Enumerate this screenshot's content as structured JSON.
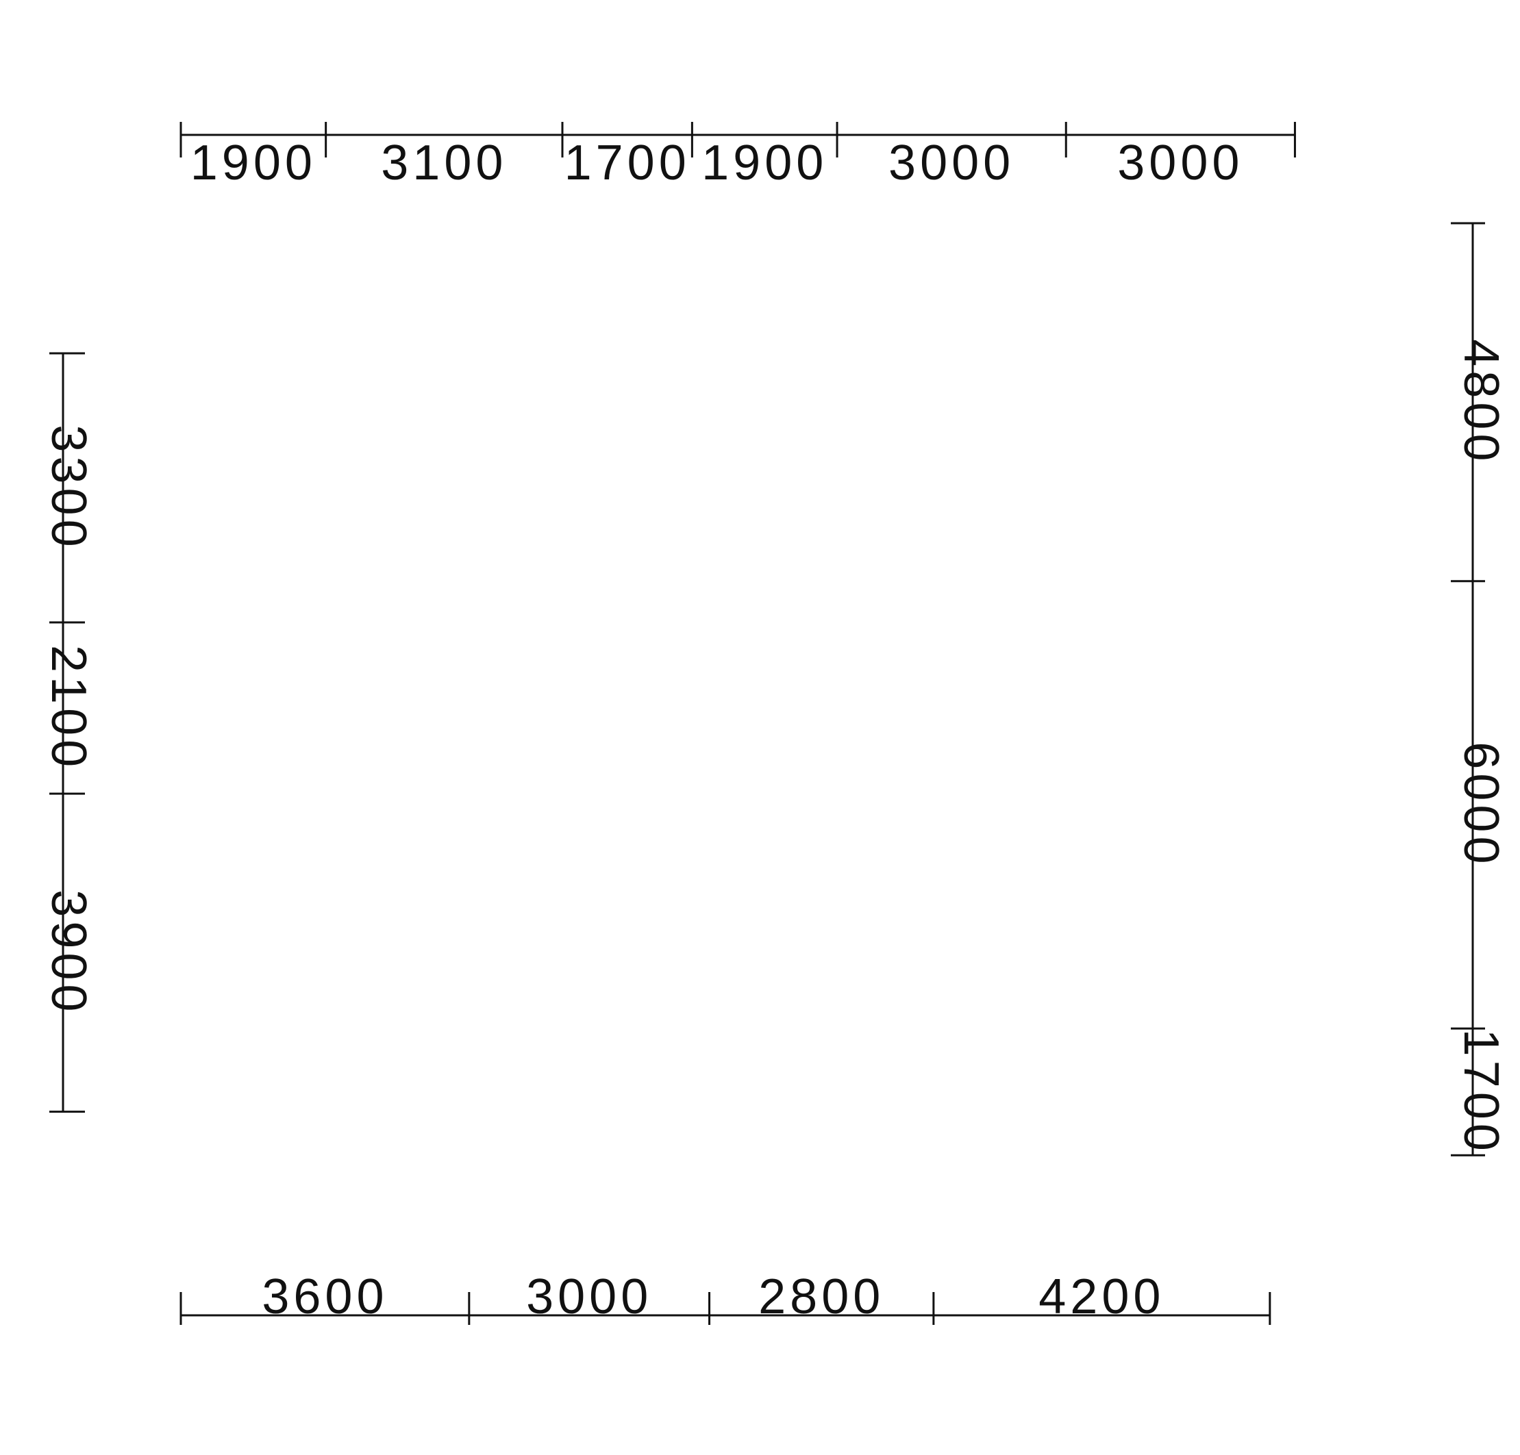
{
  "colors": {
    "line": "#111111",
    "background": "#ffffff"
  },
  "dimensions": {
    "top": [
      "1900",
      "3100",
      "1700",
      "1900",
      "3000",
      "3000"
    ],
    "bottom": [
      "3600",
      "3000",
      "2800",
      "4200"
    ],
    "left": [
      "3300",
      "2100",
      "3900"
    ],
    "right": [
      "4800",
      "6000",
      "1700"
    ]
  }
}
